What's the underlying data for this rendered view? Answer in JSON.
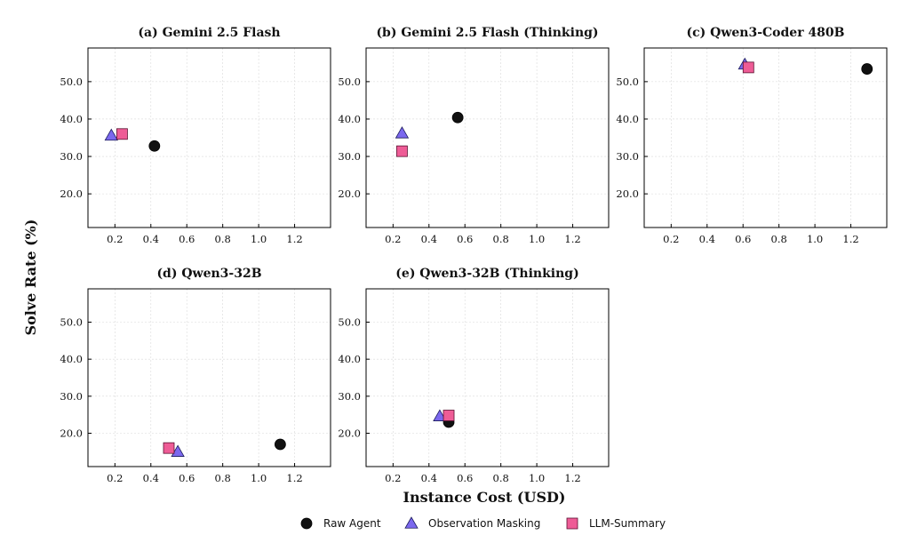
{
  "chart_data": {
    "type": "scatter",
    "xlabel": "Instance Cost (USD)",
    "ylabel": "Solve Rate (%)",
    "xlim": [
      0.05,
      1.4
    ],
    "ylim": [
      11,
      59
    ],
    "xticks": [
      0.2,
      0.4,
      0.6,
      0.8,
      1.0,
      1.2
    ],
    "xtick_labels": [
      "0.2",
      "0.4",
      "0.6",
      "0.8",
      "1.0",
      "1.2"
    ],
    "yticks": [
      20,
      30,
      40,
      50
    ],
    "ytick_labels": [
      "20.0",
      "30.0",
      "40.0",
      "50.0"
    ],
    "grid": true,
    "legend_position": "bottom-center",
    "series_styles": [
      {
        "name": "Raw Agent",
        "marker": "circle",
        "color": "#111111"
      },
      {
        "name": "Observation Masking",
        "marker": "triangle",
        "color": "#7b68ee"
      },
      {
        "name": "LLM-Summary",
        "marker": "square",
        "color": "#ee5c96"
      }
    ],
    "panels": [
      {
        "title": "(a) Gemini 2.5 Flash",
        "points": [
          {
            "series": "Raw Agent",
            "x": 0.42,
            "y": 32.8
          },
          {
            "series": "Observation Masking",
            "x": 0.18,
            "y": 35.6
          },
          {
            "series": "LLM-Summary",
            "x": 0.24,
            "y": 36.0
          }
        ]
      },
      {
        "title": "(b) Gemini 2.5 Flash (Thinking)",
        "points": [
          {
            "series": "Raw Agent",
            "x": 0.56,
            "y": 40.4
          },
          {
            "series": "Observation Masking",
            "x": 0.25,
            "y": 36.2
          },
          {
            "series": "LLM-Summary",
            "x": 0.25,
            "y": 31.4
          }
        ]
      },
      {
        "title": "(c) Qwen3-Coder 480B",
        "points": [
          {
            "series": "Raw Agent",
            "x": 1.29,
            "y": 53.4
          },
          {
            "series": "Observation Masking",
            "x": 0.61,
            "y": 54.6
          },
          {
            "series": "LLM-Summary",
            "x": 0.63,
            "y": 53.8
          }
        ]
      },
      {
        "title": "(d) Qwen3-32B",
        "points": [
          {
            "series": "Raw Agent",
            "x": 1.12,
            "y": 17.0
          },
          {
            "series": "Observation Masking",
            "x": 0.55,
            "y": 15.0
          },
          {
            "series": "LLM-Summary",
            "x": 0.5,
            "y": 16.0
          }
        ]
      },
      {
        "title": "(e) Qwen3-32B (Thinking)",
        "points": [
          {
            "series": "Raw Agent",
            "x": 0.51,
            "y": 23.0
          },
          {
            "series": "Observation Masking",
            "x": 0.46,
            "y": 24.6
          },
          {
            "series": "LLM-Summary",
            "x": 0.51,
            "y": 24.8
          }
        ]
      }
    ]
  }
}
